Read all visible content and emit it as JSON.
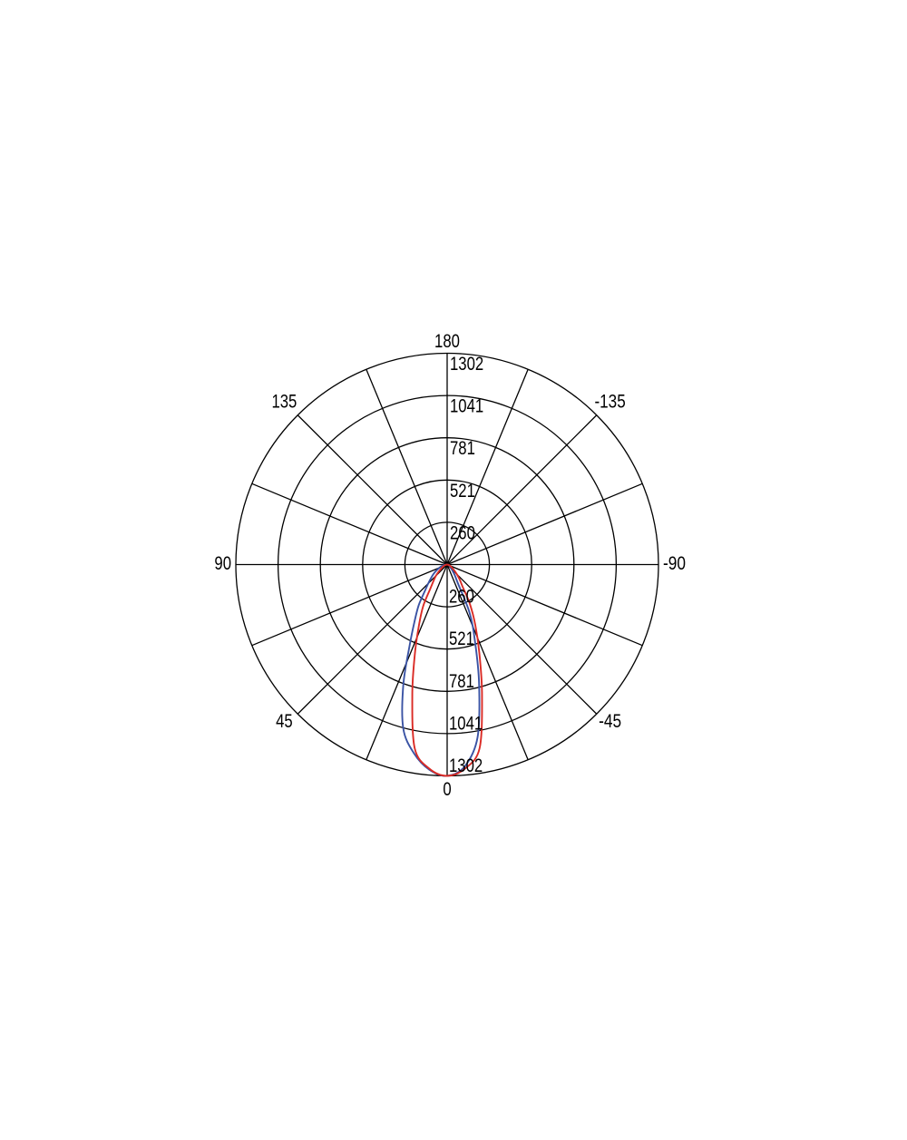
{
  "page": {
    "background": "#ffffff"
  },
  "chart_data": {
    "type": "line",
    "subtype": "polar-luminous-intensity-distribution",
    "title": "",
    "legend": "none",
    "grid": "on",
    "grid_color": "#000000",
    "text_color": "#000000",
    "rings": 5,
    "rmax": 1302,
    "radial_tick_labels": [
      "260",
      "521",
      "781",
      "1041",
      "1302"
    ],
    "angle_step_deg": 22.5,
    "angle_labels": [
      {
        "deg": 180,
        "label": "180"
      },
      {
        "deg": 135,
        "label": "135"
      },
      {
        "deg": -135,
        "label": "-135"
      },
      {
        "deg": 90,
        "label": "90"
      },
      {
        "deg": -90,
        "label": "-90"
      },
      {
        "deg": 45,
        "label": "45"
      },
      {
        "deg": -45,
        "label": "-45"
      },
      {
        "deg": 0,
        "label": "0"
      }
    ],
    "series": [
      {
        "id": "blue",
        "color": "#3a53a4",
        "points": [
          [
            -90,
            0
          ],
          [
            -80,
            5
          ],
          [
            -70,
            10
          ],
          [
            -60,
            15
          ],
          [
            -50,
            26
          ],
          [
            -45,
            38
          ],
          [
            -40,
            55
          ],
          [
            -35,
            85
          ],
          [
            -30,
            130
          ],
          [
            -25,
            325
          ],
          [
            -20,
            500
          ],
          [
            -15,
            760
          ],
          [
            -10,
            1080
          ],
          [
            -5,
            1248
          ],
          [
            0,
            1302
          ],
          [
            5,
            1268
          ],
          [
            10,
            1180
          ],
          [
            15,
            1045
          ],
          [
            20,
            790
          ],
          [
            25,
            545
          ],
          [
            30,
            400
          ],
          [
            35,
            305
          ],
          [
            40,
            215
          ],
          [
            45,
            165
          ],
          [
            50,
            130
          ],
          [
            55,
            104
          ],
          [
            60,
            80
          ],
          [
            70,
            45
          ],
          [
            80,
            20
          ],
          [
            90,
            0
          ]
        ]
      },
      {
        "id": "red",
        "color": "#da2b25",
        "points": [
          [
            -90,
            0
          ],
          [
            -80,
            6
          ],
          [
            -70,
            16
          ],
          [
            -60,
            30
          ],
          [
            -50,
            60
          ],
          [
            -45,
            85
          ],
          [
            -40,
            120
          ],
          [
            -35,
            165
          ],
          [
            -30,
            280
          ],
          [
            -25,
            410
          ],
          [
            -20,
            580
          ],
          [
            -15,
            830
          ],
          [
            -10,
            1150
          ],
          [
            -5,
            1262
          ],
          [
            0,
            1302
          ],
          [
            5,
            1262
          ],
          [
            10,
            1150
          ],
          [
            15,
            830
          ],
          [
            20,
            580
          ],
          [
            25,
            410
          ],
          [
            30,
            295
          ],
          [
            35,
            180
          ],
          [
            40,
            130
          ],
          [
            45,
            98
          ],
          [
            50,
            68
          ],
          [
            60,
            34
          ],
          [
            70,
            18
          ],
          [
            80,
            8
          ],
          [
            90,
            0
          ]
        ]
      }
    ]
  }
}
